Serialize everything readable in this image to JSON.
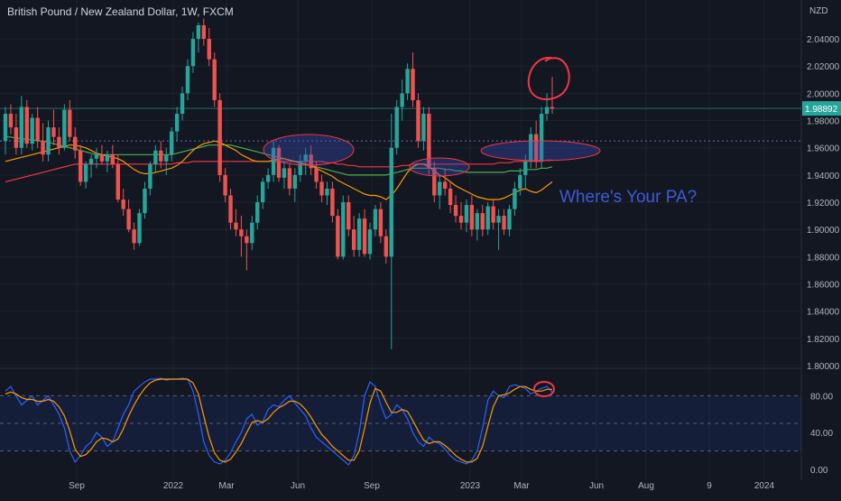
{
  "header": {
    "title": "British Pound / New Zealand Dollar, 1W, FXCM",
    "currency": "NZD"
  },
  "colors": {
    "background": "#131722",
    "grid": "#1e222d",
    "up": "#26a69a",
    "down": "#ef5350",
    "axis_text": "#b2b5be",
    "price_tag": "#26a69a",
    "annotation_red": "#f23645",
    "annotation_blue": "#3b4cc0",
    "stoch_k": "#2962ff",
    "stoch_d": "#ff9800",
    "ma_orange": "#ff9800",
    "ma_red": "#f23645",
    "ma_green": "#4caf50"
  },
  "chart_data": [
    {
      "type": "candlestick",
      "symbol": "GBPNZD",
      "timeframe": "1W",
      "y_axis": {
        "ticks": [
          "1.80000",
          "1.82000",
          "1.84000",
          "1.86000",
          "1.88000",
          "1.90000",
          "1.92000",
          "1.94000",
          "1.96000",
          "1.98000",
          "2.00000",
          "2.02000",
          "2.04000"
        ],
        "ylim": [
          1.8,
          2.05
        ]
      },
      "last_price": "1.98892",
      "x_axis": {
        "ticks": [
          "Sep",
          "2022",
          "Mar",
          "Jun",
          "Sep",
          "2023",
          "Mar",
          "Jun",
          "Aug",
          "9",
          "2024"
        ]
      },
      "candles": [
        [
          1.965,
          1.99,
          1.955,
          1.985
        ],
        [
          1.985,
          1.992,
          1.97,
          1.975
        ],
        [
          1.975,
          1.985,
          1.955,
          1.96
        ],
        [
          1.96,
          1.998,
          1.955,
          1.99
        ],
        [
          1.99,
          1.995,
          1.96,
          1.963
        ],
        [
          1.963,
          1.985,
          1.958,
          1.982
        ],
        [
          1.982,
          1.99,
          1.96,
          1.965
        ],
        [
          1.965,
          1.978,
          1.95,
          1.955
        ],
        [
          1.955,
          1.98,
          1.95,
          1.975
        ],
        [
          1.975,
          1.988,
          1.962,
          1.968
        ],
        [
          1.968,
          1.975,
          1.955,
          1.96
        ],
        [
          1.96,
          1.992,
          1.958,
          1.988
        ],
        [
          1.988,
          1.995,
          1.965,
          1.968
        ],
        [
          1.968,
          1.975,
          1.952,
          1.958
        ],
        [
          1.958,
          1.962,
          1.932,
          1.935
        ],
        [
          1.935,
          1.95,
          1.93,
          1.948
        ],
        [
          1.948,
          1.955,
          1.938,
          1.952
        ],
        [
          1.952,
          1.96,
          1.945,
          1.955
        ],
        [
          1.955,
          1.962,
          1.948,
          1.95
        ],
        [
          1.95,
          1.958,
          1.942,
          1.955
        ],
        [
          1.955,
          1.962,
          1.945,
          1.948
        ],
        [
          1.948,
          1.955,
          1.92,
          1.922
        ],
        [
          1.922,
          1.93,
          1.91,
          1.915
        ],
        [
          1.915,
          1.922,
          1.898,
          1.9
        ],
        [
          1.9,
          1.905,
          1.885,
          1.89
        ],
        [
          1.89,
          1.915,
          1.888,
          1.912
        ],
        [
          1.912,
          1.935,
          1.908,
          1.93
        ],
        [
          1.93,
          1.95,
          1.925,
          1.948
        ],
        [
          1.948,
          1.962,
          1.942,
          1.958
        ],
        [
          1.958,
          1.965,
          1.945,
          1.95
        ],
        [
          1.95,
          1.96,
          1.94,
          1.955
        ],
        [
          1.955,
          1.975,
          1.95,
          1.972
        ],
        [
          1.972,
          1.99,
          1.965,
          1.985
        ],
        [
          1.985,
          2.005,
          1.98,
          2.0
        ],
        [
          2.0,
          2.025,
          1.995,
          2.02
        ],
        [
          2.02,
          2.045,
          2.015,
          2.04
        ],
        [
          2.04,
          2.052,
          2.03,
          2.05
        ],
        [
          2.05,
          2.055,
          2.035,
          2.04
        ],
        [
          2.04,
          2.048,
          2.02,
          2.025
        ],
        [
          2.025,
          2.03,
          1.99,
          1.995
        ],
        [
          1.995,
          2.0,
          1.935,
          1.94
        ],
        [
          1.94,
          1.945,
          1.92,
          1.925
        ],
        [
          1.925,
          1.93,
          1.9,
          1.905
        ],
        [
          1.905,
          1.915,
          1.895,
          1.9
        ],
        [
          1.9,
          1.91,
          1.88,
          1.895
        ],
        [
          1.895,
          1.9,
          1.87,
          1.89
        ],
        [
          1.89,
          1.91,
          1.885,
          1.905
        ],
        [
          1.905,
          1.925,
          1.9,
          1.92
        ],
        [
          1.92,
          1.938,
          1.915,
          1.935
        ],
        [
          1.935,
          1.945,
          1.93,
          1.94
        ],
        [
          1.94,
          1.965,
          1.935,
          1.96
        ],
        [
          1.96,
          1.962,
          1.935,
          1.938
        ],
        [
          1.938,
          1.95,
          1.93,
          1.945
        ],
        [
          1.945,
          1.948,
          1.925,
          1.93
        ],
        [
          1.93,
          1.945,
          1.92,
          1.94
        ],
        [
          1.94,
          1.955,
          1.935,
          1.95
        ],
        [
          1.95,
          1.96,
          1.94,
          1.955
        ],
        [
          1.955,
          1.962,
          1.94,
          1.945
        ],
        [
          1.945,
          1.95,
          1.93,
          1.935
        ],
        [
          1.935,
          1.94,
          1.92,
          1.925
        ],
        [
          1.925,
          1.935,
          1.918,
          1.93
        ],
        [
          1.93,
          1.935,
          1.905,
          1.91
        ],
        [
          1.91,
          1.915,
          1.878,
          1.88
        ],
        [
          1.88,
          1.925,
          1.878,
          1.92
        ],
        [
          1.92,
          1.925,
          1.895,
          1.9
        ],
        [
          1.9,
          1.91,
          1.88,
          1.885
        ],
        [
          1.885,
          1.912,
          1.88,
          1.908
        ],
        [
          1.908,
          1.915,
          1.88,
          1.882
        ],
        [
          1.882,
          1.905,
          1.878,
          1.9
        ],
        [
          1.9,
          1.918,
          1.895,
          1.915
        ],
        [
          1.915,
          1.92,
          1.89,
          1.895
        ],
        [
          1.895,
          1.9,
          1.875,
          1.88
        ],
        [
          1.88,
          1.985,
          1.812,
          1.96
        ],
        [
          1.96,
          1.995,
          1.955,
          1.99
        ],
        [
          1.99,
          2.01,
          1.98,
          2.0
        ],
        [
          2.0,
          2.022,
          1.995,
          2.018
        ],
        [
          2.018,
          2.03,
          1.99,
          1.995
        ],
        [
          1.995,
          2.0,
          1.96,
          1.965
        ],
        [
          1.965,
          1.99,
          1.958,
          1.985
        ],
        [
          1.985,
          1.99,
          1.94,
          1.945
        ],
        [
          1.945,
          1.95,
          1.92,
          1.925
        ],
        [
          1.925,
          1.94,
          1.915,
          1.935
        ],
        [
          1.935,
          1.945,
          1.925,
          1.93
        ],
        [
          1.93,
          1.935,
          1.912,
          1.918
        ],
        [
          1.918,
          1.925,
          1.905,
          1.91
        ],
        [
          1.91,
          1.92,
          1.9,
          1.905
        ],
        [
          1.905,
          1.922,
          1.898,
          1.918
        ],
        [
          1.918,
          1.925,
          1.895,
          1.9
        ],
        [
          1.9,
          1.915,
          1.892,
          1.912
        ],
        [
          1.912,
          1.918,
          1.895,
          1.9
        ],
        [
          1.9,
          1.92,
          1.896,
          1.917
        ],
        [
          1.917,
          1.922,
          1.9,
          1.905
        ],
        [
          1.905,
          1.915,
          1.885,
          1.91
        ],
        [
          1.91,
          1.915,
          1.896,
          1.9
        ],
        [
          1.9,
          1.918,
          1.895,
          1.915
        ],
        [
          1.915,
          1.935,
          1.91,
          1.93
        ],
        [
          1.93,
          1.945,
          1.925,
          1.94
        ],
        [
          1.94,
          1.955,
          1.93,
          1.95
        ],
        [
          1.95,
          1.975,
          1.945,
          1.97
        ],
        [
          1.97,
          1.98,
          1.945,
          1.95
        ],
        [
          1.95,
          1.99,
          1.945,
          1.985
        ],
        [
          1.985,
          2.0,
          1.98,
          1.99
        ],
        [
          1.99,
          2.012,
          1.985,
          1.9889
        ]
      ],
      "ma_orange": [
        1.95,
        1.951,
        1.952,
        1.953,
        1.954,
        1.955,
        1.956,
        1.957,
        1.958,
        1.959,
        1.96,
        1.961,
        1.962,
        1.962,
        1.961,
        1.96,
        1.958,
        1.956,
        1.955,
        1.954,
        1.953,
        1.952,
        1.95,
        1.947,
        1.944,
        1.942,
        1.941,
        1.941,
        1.942,
        1.943,
        1.944,
        1.945,
        1.947,
        1.95,
        1.954,
        1.958,
        1.961,
        1.963,
        1.964,
        1.965,
        1.964,
        1.962,
        1.96,
        1.958,
        1.955,
        1.953,
        1.951,
        1.95,
        1.95,
        1.95,
        1.951,
        1.952,
        1.952,
        1.951,
        1.95,
        1.949,
        1.948,
        1.947,
        1.945,
        1.943,
        1.941,
        1.939,
        1.936,
        1.934,
        1.932,
        1.93,
        1.928,
        1.926,
        1.925,
        1.925,
        1.924,
        1.922,
        1.925,
        1.93,
        1.936,
        1.942,
        1.946,
        1.948,
        1.948,
        1.946,
        1.943,
        1.94,
        1.938,
        1.935,
        1.932,
        1.93,
        1.928,
        1.926,
        1.924,
        1.923,
        1.922,
        1.922,
        1.922,
        1.923,
        1.925,
        1.927,
        1.929,
        1.93,
        1.928,
        1.927,
        1.929,
        1.932,
        1.935
      ],
      "ma_red": [
        1.935,
        1.936,
        1.937,
        1.938,
        1.939,
        1.94,
        1.941,
        1.942,
        1.943,
        1.944,
        1.945,
        1.946,
        1.947,
        1.948,
        1.948,
        1.948,
        1.948,
        1.948,
        1.948,
        1.948,
        1.948,
        1.948,
        1.948,
        1.948,
        1.948,
        1.948,
        1.948,
        1.948,
        1.948,
        1.948,
        1.948,
        1.948,
        1.949,
        1.949,
        1.949,
        1.95,
        1.95,
        1.95,
        1.95,
        1.95,
        1.95,
        1.95,
        1.95,
        1.95,
        1.95,
        1.95,
        1.95,
        1.95,
        1.95,
        1.95,
        1.95,
        1.95,
        1.95,
        1.95,
        1.95,
        1.95,
        1.95,
        1.95,
        1.95,
        1.95,
        1.949,
        1.949,
        1.948,
        1.948,
        1.947,
        1.947,
        1.946,
        1.946,
        1.946,
        1.946,
        1.946,
        1.946,
        1.946,
        1.946,
        1.947,
        1.947,
        1.948,
        1.948,
        1.948,
        1.948,
        1.948,
        1.948,
        1.948,
        1.948,
        1.948,
        1.948,
        1.948,
        1.948,
        1.948,
        1.948,
        1.948,
        1.948,
        1.949,
        1.949,
        1.949,
        1.95,
        1.95,
        1.95,
        1.95,
        1.95,
        1.95,
        1.951,
        1.951
      ],
      "ma_green": [
        1.968,
        1.968,
        1.967,
        1.967,
        1.966,
        1.966,
        1.965,
        1.965,
        1.964,
        1.963,
        1.962,
        1.961,
        1.96,
        1.959,
        1.958,
        1.957,
        1.956,
        1.955,
        1.955,
        1.955,
        1.955,
        1.955,
        1.955,
        1.955,
        1.955,
        1.955,
        1.955,
        1.955,
        1.955,
        1.955,
        1.955,
        1.955,
        1.956,
        1.957,
        1.958,
        1.959,
        1.96,
        1.961,
        1.962,
        1.962,
        1.962,
        1.962,
        1.962,
        1.961,
        1.96,
        1.959,
        1.958,
        1.957,
        1.956,
        1.955,
        1.954,
        1.953,
        1.952,
        1.951,
        1.95,
        1.949,
        1.948,
        1.947,
        1.946,
        1.945,
        1.944,
        1.943,
        1.942,
        1.941,
        1.94,
        1.94,
        1.94,
        1.94,
        1.94,
        1.94,
        1.94,
        1.94,
        1.941,
        1.942,
        1.943,
        1.944,
        1.945,
        1.945,
        1.945,
        1.945,
        1.945,
        1.945,
        1.944,
        1.944,
        1.943,
        1.943,
        1.942,
        1.942,
        1.942,
        1.942,
        1.942,
        1.942,
        1.942,
        1.942,
        1.943,
        1.943,
        1.943,
        1.944,
        1.944,
        1.944,
        1.945,
        1.945,
        1.946
      ]
    },
    {
      "type": "line",
      "indicator": "stochastic",
      "y_axis": {
        "ticks": [
          "0.00",
          "40.00",
          "80.00"
        ],
        "ylim": [
          0,
          100
        ],
        "band": [
          20,
          80
        ]
      },
      "series": [
        {
          "key": "k",
          "values": [
            85,
            90,
            80,
            70,
            75,
            80,
            70,
            75,
            80,
            70,
            60,
            45,
            20,
            8,
            15,
            25,
            30,
            40,
            35,
            25,
            30,
            45,
            60,
            70,
            85,
            90,
            95,
            98,
            98,
            99,
            97,
            98,
            98,
            99,
            98,
            85,
            60,
            30,
            15,
            8,
            6,
            10,
            18,
            30,
            40,
            55,
            60,
            48,
            52,
            65,
            70,
            68,
            75,
            80,
            72,
            65,
            58,
            45,
            35,
            30,
            25,
            20,
            15,
            10,
            5,
            15,
            40,
            80,
            95,
            90,
            70,
            55,
            60,
            70,
            65,
            55,
            40,
            30,
            25,
            35,
            30,
            28,
            22,
            15,
            10,
            8,
            6,
            10,
            20,
            45,
            75,
            85,
            80,
            78,
            90,
            92,
            90,
            88,
            82,
            85,
            88,
            90,
            84
          ]
        },
        {
          "key": "d",
          "values": [
            82,
            84,
            82,
            78,
            76,
            76,
            74,
            74,
            76,
            74,
            68,
            58,
            42,
            22,
            14,
            16,
            22,
            30,
            34,
            33,
            30,
            33,
            44,
            58,
            70,
            80,
            88,
            94,
            97,
            98,
            98,
            98,
            98,
            98,
            98,
            94,
            82,
            58,
            35,
            18,
            10,
            8,
            11,
            19,
            28,
            40,
            51,
            53,
            51,
            55,
            62,
            67,
            70,
            74,
            74,
            71,
            65,
            57,
            47,
            38,
            32,
            25,
            20,
            15,
            10,
            10,
            20,
            45,
            72,
            88,
            85,
            73,
            62,
            62,
            65,
            63,
            53,
            42,
            32,
            28,
            30,
            30,
            26,
            21,
            15,
            11,
            8,
            8,
            12,
            25,
            47,
            68,
            80,
            81,
            83,
            87,
            90,
            90,
            87,
            85,
            85,
            87,
            87
          ]
        }
      ]
    }
  ],
  "annotations": {
    "text": "Where's Your PA?"
  }
}
